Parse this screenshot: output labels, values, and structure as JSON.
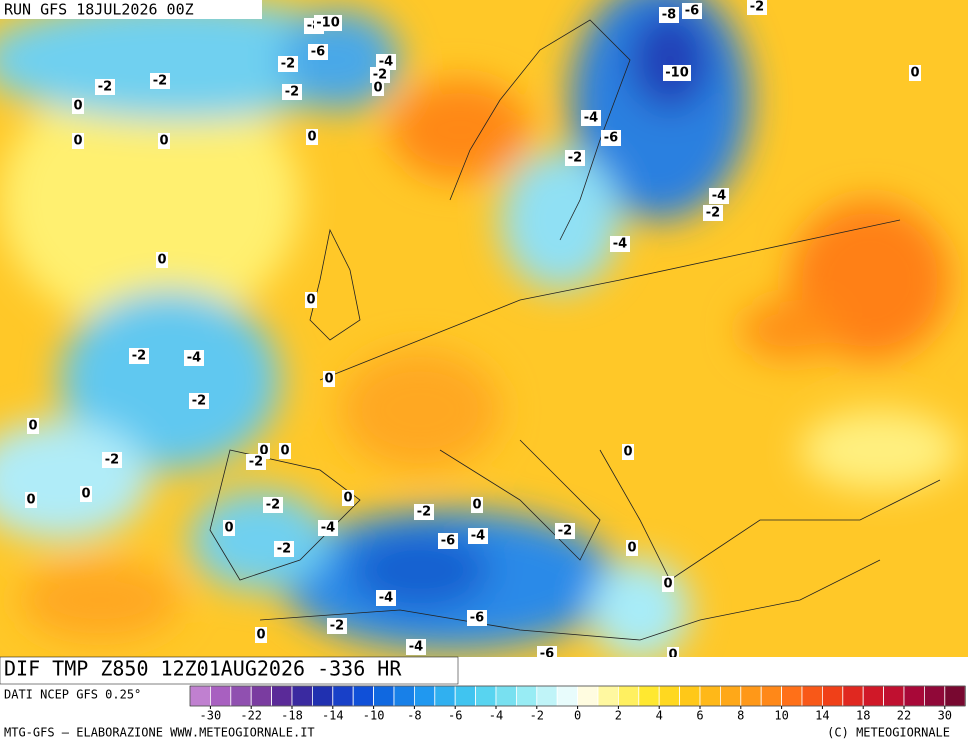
{
  "header": {
    "run": "RUN GFS 18JUL2026 00Z"
  },
  "map": {
    "contour_labels": [
      -8,
      -10,
      -6,
      -2,
      -4,
      -2,
      0,
      -2,
      -2,
      -2,
      0,
      0,
      0,
      0,
      -8,
      -6,
      -2,
      -10,
      0,
      -4,
      -6,
      -2,
      -4,
      -2,
      -4,
      0,
      0,
      -2,
      -4,
      -2,
      0,
      0,
      -2,
      0,
      -2,
      0,
      0,
      0,
      0,
      0,
      0,
      -2,
      -2,
      -4,
      0,
      -6,
      -4,
      -2,
      -2,
      0,
      0,
      -4,
      0,
      -2,
      -6,
      -4,
      -6,
      0
    ]
  },
  "footer": {
    "product": "DIF TMP Z850 12Z01AUG2026 -336 HR",
    "source": "DATI NCEP GFS 0.25°",
    "credit": "MTG-GFS — ELABORAZIONE WWW.METEOGIORNALE.IT",
    "copyright": "(C) METEOGIORNALE"
  },
  "colorbar": {
    "colors": [
      "#c080d0",
      "#a860c0",
      "#9050b0",
      "#7a3ca0",
      "#5a2a98",
      "#3a2aa0",
      "#2030b0",
      "#1840c8",
      "#1050d8",
      "#1068e0",
      "#1880e8",
      "#2098f0",
      "#30b0f0",
      "#40c4f0",
      "#58d4f0",
      "#78e0f0",
      "#98ecf4",
      "#c0f4f8",
      "#e8fcfc",
      "#fffce0",
      "#fff8a0",
      "#fff060",
      "#ffe830",
      "#ffd820",
      "#ffc818",
      "#ffb818",
      "#ffa818",
      "#ff9818",
      "#ff8818",
      "#ff7018",
      "#f85818",
      "#f04018",
      "#e02820",
      "#d01828",
      "#c01030",
      "#a80838",
      "#900838",
      "#780830"
    ],
    "ticks": [
      -30,
      -22,
      -18,
      -14,
      -10,
      -8,
      -6,
      -4,
      -2,
      0,
      2,
      4,
      6,
      8,
      10,
      14,
      18,
      22,
      30
    ]
  }
}
